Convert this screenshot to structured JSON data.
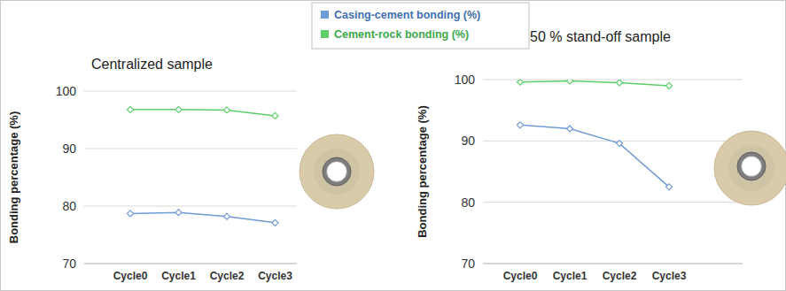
{
  "chart_data": [
    {
      "type": "line",
      "title": "Centralized sample",
      "y_label": "Bonding percentage (%)",
      "categories": [
        "Cycle0",
        "Cycle1",
        "Cycle2",
        "Cycle3"
      ],
      "series": [
        {
          "name": "Casing-cement bonding (%)",
          "color": "#6f9bd6",
          "values": [
            78.7,
            78.9,
            78.2,
            77.1
          ]
        },
        {
          "name": "Cement-rock bonding (%)",
          "color": "#5ccf6a",
          "values": [
            96.8,
            96.8,
            96.7,
            95.7
          ]
        }
      ],
      "ylim": [
        70,
        100
      ],
      "yticks": [
        70,
        80,
        90,
        100
      ],
      "grid": true,
      "marker": "diamond",
      "legend": "top"
    },
    {
      "type": "line",
      "title": "50 % stand-off sample",
      "y_label": "Bonding percentage (%)",
      "categories": [
        "Cycle0",
        "Cycle1",
        "Cycle2",
        "Cycle3"
      ],
      "series": [
        {
          "color": "#6f9bd6",
          "values": [
            92.6,
            92.0,
            89.6,
            82.5
          ]
        },
        {
          "color": "#5ccf6a",
          "values": [
            99.6,
            99.8,
            99.5,
            99.0
          ]
        }
      ],
      "ylim": [
        70,
        100
      ],
      "yticks": [
        70,
        80,
        90,
        100
      ],
      "grid": true,
      "marker": "diamond"
    }
  ]
}
